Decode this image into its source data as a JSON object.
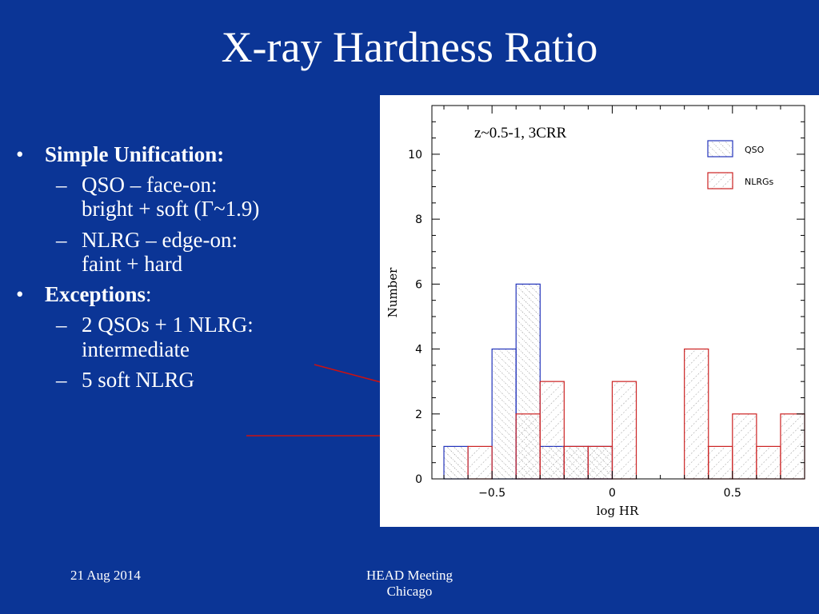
{
  "slide": {
    "title": "X-ray Hardness Ratio",
    "bullets": [
      {
        "marker": "•",
        "text": "Simple Unification:",
        "sub": [
          {
            "marker": "–",
            "lines": [
              "QSO – face-on:",
              "bright + soft (Γ~1.9)"
            ]
          },
          {
            "marker": "–",
            "lines": [
              "NLRG – edge-on:",
              "faint + hard"
            ]
          }
        ]
      },
      {
        "marker": "•",
        "text": "Exceptions",
        "suffix": ":",
        "sub": [
          {
            "marker": "–",
            "lines": [
              "2 QSOs + 1 NLRG:",
              "intermediate"
            ]
          },
          {
            "marker": "–",
            "lines": [
              "5 soft NLRG"
            ]
          }
        ]
      }
    ],
    "footer_date": "21 Aug 2014",
    "footer_event": [
      "HEAD Meeting",
      "Chicago"
    ]
  },
  "colors": {
    "background": "#0b3596",
    "qso": "#2233bb",
    "nlrg": "#cc2222",
    "connector": "#cc1111"
  },
  "chart_data": {
    "type": "bar",
    "annotation": "z~0.5-1, 3CRR",
    "xlabel": "log HR",
    "ylabel": "Number",
    "xlim": [
      -0.75,
      0.8
    ],
    "ylim": [
      0,
      11.5
    ],
    "bin_width": 0.1,
    "xticks": [
      -0.5,
      0,
      0.5
    ],
    "xtick_labels": [
      "−0.5",
      "0",
      "0.5"
    ],
    "yticks": [
      0,
      2,
      4,
      6,
      8,
      10
    ],
    "ytick_labels": [
      "0",
      "2",
      "4",
      "6",
      "8",
      "10"
    ],
    "legend": "top-right",
    "grid": false,
    "series": [
      {
        "name": "QSO",
        "bins": [
          {
            "x0": -0.7,
            "x1": -0.6,
            "count": 1
          },
          {
            "x0": -0.5,
            "x1": -0.4,
            "count": 4
          },
          {
            "x0": -0.4,
            "x1": -0.3,
            "count": 6
          },
          {
            "x0": -0.3,
            "x1": -0.2,
            "count": 1
          },
          {
            "x0": -0.2,
            "x1": -0.1,
            "count": 1
          },
          {
            "x0": -0.1,
            "x1": 0.0,
            "count": 1
          }
        ]
      },
      {
        "name": "NLRGs",
        "bins": [
          {
            "x0": -0.6,
            "x1": -0.5,
            "count": 1
          },
          {
            "x0": -0.4,
            "x1": -0.3,
            "count": 2
          },
          {
            "x0": -0.3,
            "x1": -0.2,
            "count": 3
          },
          {
            "x0": -0.2,
            "x1": -0.1,
            "count": 1
          },
          {
            "x0": -0.1,
            "x1": 0.0,
            "count": 1
          },
          {
            "x0": 0.0,
            "x1": 0.1,
            "count": 3
          },
          {
            "x0": 0.3,
            "x1": 0.4,
            "count": 4
          },
          {
            "x0": 0.4,
            "x1": 0.5,
            "count": 1
          },
          {
            "x0": 0.5,
            "x1": 0.6,
            "count": 2
          },
          {
            "x0": 0.6,
            "x1": 0.7,
            "count": 1
          },
          {
            "x0": 0.7,
            "x1": 0.8,
            "count": 2
          }
        ]
      }
    ]
  }
}
